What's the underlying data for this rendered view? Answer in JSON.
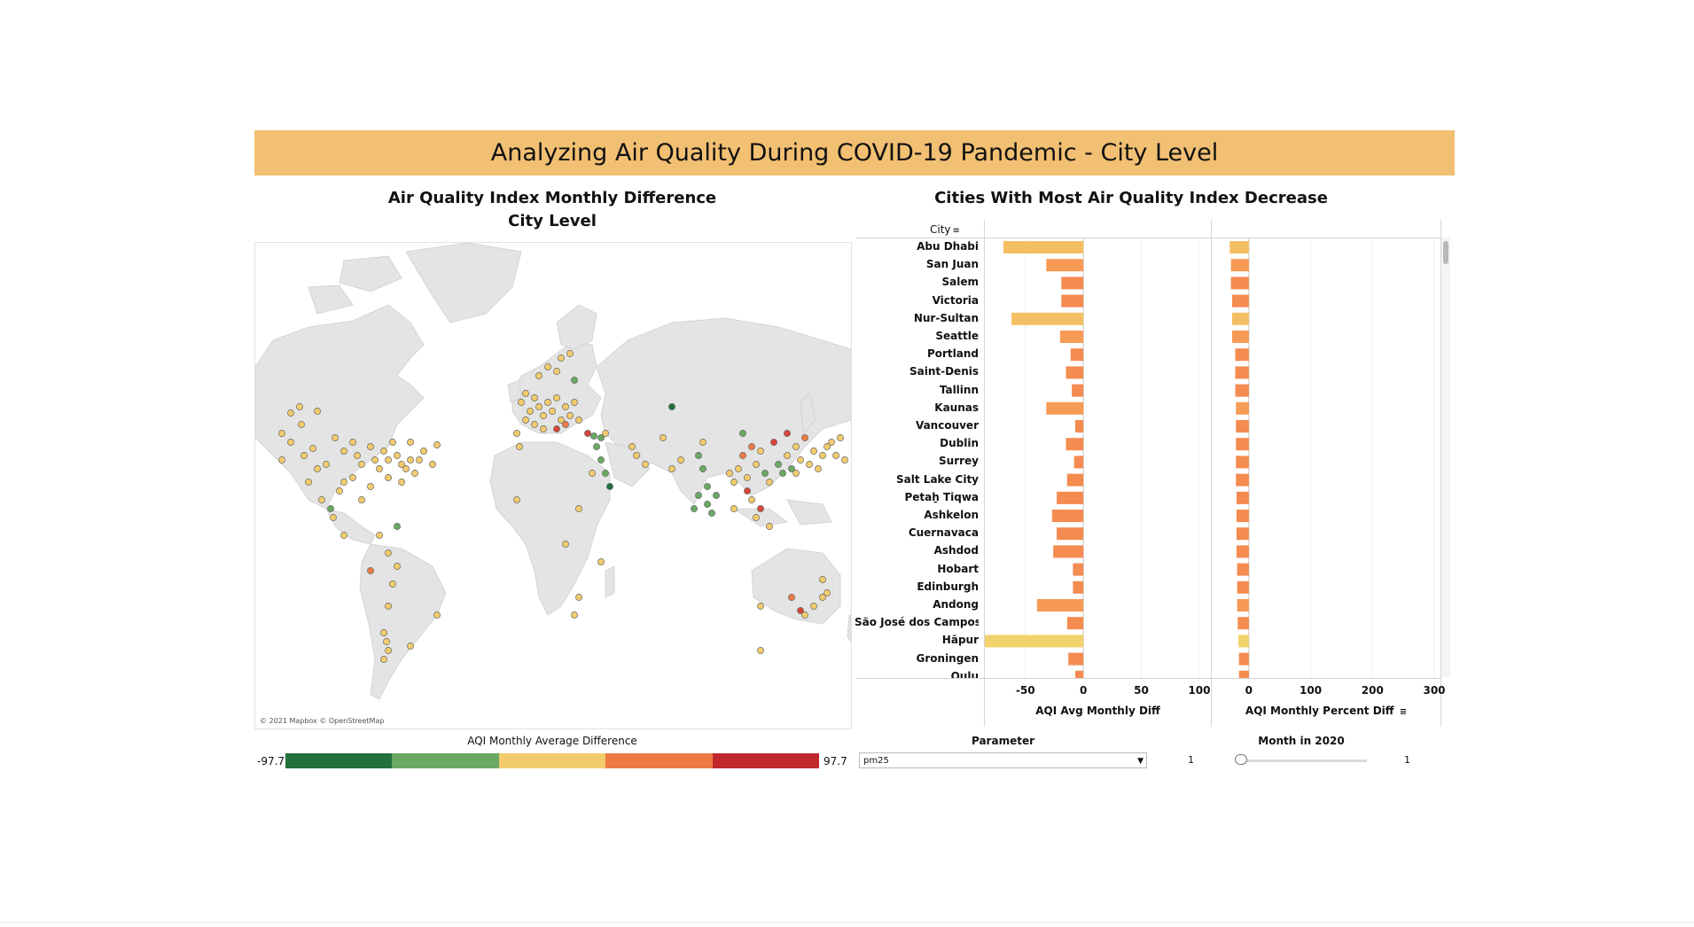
{
  "title": "Analyzing Air Quality During COVID-19 Pandemic - City Level",
  "map": {
    "title_line1": "Air Quality Index Monthly Difference",
    "title_line2": "City Level",
    "attribution": "© 2021 Mapbox © OpenStreetMap"
  },
  "legend": {
    "title": "AQI Monthly Average Difference",
    "min": "-97.7",
    "max": "97.7",
    "colors": [
      "#23703c",
      "#6aa963",
      "#f2cc6c",
      "#ee7a44",
      "#c0282e"
    ]
  },
  "bars": {
    "title": "Cities With Most Air Quality Index Decrease",
    "city_header": "City",
    "panel1_title": "AQI Avg Monthly Diff",
    "panel2_title": "AQI Monthly Percent Diff",
    "panel1_ticks": [
      "-50",
      "0",
      "50",
      "100"
    ],
    "panel2_ticks": [
      "0",
      "100",
      "200",
      "300"
    ]
  },
  "chart_data": {
    "type": "bar",
    "orientation": "horizontal",
    "title": "Cities With Most Air Quality Index Decrease",
    "categories": [
      "Abu Dhabi",
      "San Juan",
      "Salem",
      "Victoria",
      "Nur-Sultan",
      "Seattle",
      "Portland",
      "Saint-Denis",
      "Tallinn",
      "Kaunas",
      "Vancouver",
      "Dublin",
      "Surrey",
      "Salt Lake City",
      "Petaẖ Tiqwa",
      "Ashkelon",
      "Cuernavaca",
      "Ashdod",
      "Hobart",
      "Edinburgh",
      "Andong",
      "São José dos Campos",
      "Hāpur",
      "Groningen",
      "Oulu"
    ],
    "series": [
      {
        "name": "AQI Avg Monthly Diff",
        "xlim": [
          -85,
          110
        ],
        "values": [
          -69,
          -32,
          -19,
          -19,
          -62,
          -20,
          -11,
          -15,
          -10,
          -32,
          -7,
          -15,
          -8,
          -14,
          -23,
          -27,
          -23,
          -26,
          -9,
          -9,
          -40,
          -14,
          -86,
          -13,
          -7
        ],
        "colors": [
          "#f4bf62",
          "#f79a55",
          "#f48b50",
          "#f48b50",
          "#f4bf62",
          "#f79a55",
          "#f48b50",
          "#f48b50",
          "#f48b50",
          "#f79a55",
          "#f48b50",
          "#f48b50",
          "#f48b50",
          "#f48b50",
          "#f48b50",
          "#f48b50",
          "#f48b50",
          "#f48b50",
          "#f48b50",
          "#f48b50",
          "#f79a55",
          "#f48b50",
          "#f2d26c",
          "#f48b50",
          "#f48b50"
        ]
      },
      {
        "name": "AQI Monthly Percent Diff",
        "xlim": [
          -60,
          310
        ],
        "values": [
          -31,
          -29,
          -29,
          -27,
          -27,
          -27,
          -22,
          -22,
          -22,
          -21,
          -21,
          -21,
          -21,
          -21,
          -20,
          -20,
          -20,
          -20,
          -19,
          -19,
          -19,
          -18,
          -17,
          -16,
          -16
        ],
        "colors": [
          "#f4bf62",
          "#f79a55",
          "#f48b50",
          "#f48b50",
          "#f4bf62",
          "#f79a55",
          "#f48b50",
          "#f48b50",
          "#f48b50",
          "#f79a55",
          "#f48b50",
          "#f48b50",
          "#f48b50",
          "#f48b50",
          "#f48b50",
          "#f48b50",
          "#f48b50",
          "#f48b50",
          "#f48b50",
          "#f48b50",
          "#f79a55",
          "#f48b50",
          "#f2d26c",
          "#f48b50",
          "#f48b50"
        ]
      }
    ]
  },
  "controls": {
    "parameter_label": "Parameter",
    "parameter_value": "pm25",
    "parameter_count": "1",
    "month_label": "Month in 2020",
    "month_value": "1",
    "month_position": 0
  }
}
